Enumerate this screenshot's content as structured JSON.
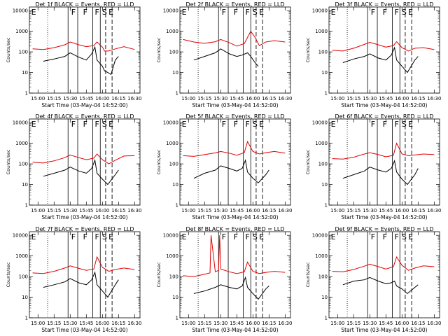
{
  "figure": {
    "xlabel": "Start Time (03-May-04 14:52:00)",
    "ylabel": "Counts/sec",
    "xticks": [
      "15:00",
      "15:15",
      "15:30",
      "15:45",
      "16:00",
      "16:15",
      "16:30"
    ],
    "yticks": [
      "1",
      "10",
      "100",
      "1000",
      "10000"
    ],
    "colors": {
      "events": "#000000",
      "lld": "#e00000"
    },
    "region_letters": [
      "E",
      "F",
      "F",
      "F",
      "S",
      "E"
    ]
  },
  "chart_data": [
    {
      "type": "line",
      "title": "Det 1f BLACK = Events, RED = LLD",
      "ylim": [
        1,
        15000
      ],
      "xlim": [
        "14:52",
        "16:35"
      ],
      "yscale": "log",
      "series": [
        {
          "x": [
            "15:05",
            "15:15",
            "15:25",
            "15:30",
            "15:38",
            "15:45",
            "15:50",
            "15:53",
            "15:55",
            "16:00",
            "16:02",
            "16:05",
            "16:08",
            "16:12",
            "16:15"
          ],
          "values": [
            35,
            45,
            60,
            90,
            55,
            40,
            80,
            170,
            40,
            20,
            12,
            10,
            8,
            40,
            60
          ]
        },
        {
          "x": [
            "14:55",
            "15:05",
            "15:15",
            "15:25",
            "15:30",
            "15:38",
            "15:45",
            "15:52",
            "15:55",
            "16:00",
            "16:02",
            "16:06",
            "16:10",
            "16:20",
            "16:30"
          ],
          "values": [
            140,
            130,
            160,
            220,
            300,
            220,
            180,
            200,
            300,
            170,
            110,
            110,
            130,
            180,
            130
          ]
        }
      ]
    },
    {
      "type": "line",
      "title": "Det 2f BLACK = Events, RED = LLD",
      "ylim": [
        1,
        15000
      ],
      "xlim": [
        "14:52",
        "16:35"
      ],
      "yscale": "log",
      "series": [
        {
          "x": [
            "15:05",
            "15:15",
            "15:25",
            "15:30",
            "15:38",
            "15:45",
            "15:50",
            "15:55",
            "15:58",
            "16:02",
            "16:05"
          ],
          "values": [
            40,
            60,
            90,
            140,
            80,
            60,
            70,
            90,
            60,
            30,
            20
          ]
        },
        {
          "x": [
            "14:55",
            "15:05",
            "15:15",
            "15:25",
            "15:30",
            "15:38",
            "15:45",
            "15:52",
            "15:58",
            "16:02",
            "16:06",
            "16:12",
            "16:20",
            "16:30"
          ],
          "values": [
            400,
            300,
            260,
            310,
            400,
            280,
            190,
            250,
            1000,
            500,
            200,
            300,
            350,
            300
          ]
        }
      ]
    },
    {
      "type": "line",
      "title": "Det 3f BLACK = Events, RED = LLD",
      "ylim": [
        1,
        15000
      ],
      "xlim": [
        "14:52",
        "16:35"
      ],
      "yscale": "log",
      "series": [
        {
          "x": [
            "15:05",
            "15:15",
            "15:25",
            "15:30",
            "15:38",
            "15:45",
            "15:50",
            "15:53",
            "15:55",
            "16:00",
            "16:05",
            "16:12",
            "16:15"
          ],
          "values": [
            30,
            45,
            60,
            80,
            50,
            40,
            70,
            160,
            40,
            20,
            10,
            40,
            60
          ]
        },
        {
          "x": [
            "14:55",
            "15:05",
            "15:15",
            "15:25",
            "15:30",
            "15:38",
            "15:45",
            "15:52",
            "15:55",
            "16:00",
            "16:06",
            "16:12",
            "16:20",
            "16:30"
          ],
          "values": [
            120,
            110,
            150,
            230,
            290,
            220,
            170,
            200,
            310,
            160,
            110,
            150,
            160,
            130
          ]
        }
      ]
    },
    {
      "type": "line",
      "title": "Det 4f BLACK = Events, RED = LLD",
      "ylim": [
        1,
        15000
      ],
      "xlim": [
        "14:52",
        "16:35"
      ],
      "yscale": "log",
      "series": [
        {
          "x": [
            "15:05",
            "15:15",
            "15:25",
            "15:30",
            "15:38",
            "15:45",
            "15:50",
            "15:53",
            "15:55",
            "16:00",
            "16:05",
            "16:12",
            "16:15"
          ],
          "values": [
            25,
            35,
            50,
            70,
            45,
            35,
            60,
            150,
            35,
            18,
            10,
            30,
            50
          ]
        },
        {
          "x": [
            "14:55",
            "15:05",
            "15:15",
            "15:25",
            "15:30",
            "15:38",
            "15:45",
            "15:52",
            "15:55",
            "16:00",
            "16:06",
            "16:12",
            "16:20",
            "16:30"
          ],
          "values": [
            120,
            110,
            140,
            200,
            270,
            200,
            160,
            190,
            300,
            160,
            100,
            150,
            240,
            250
          ]
        }
      ]
    },
    {
      "type": "line",
      "title": "Det 5f BLACK = Events, RED = LLD",
      "ylim": [
        1,
        15000
      ],
      "xlim": [
        "14:52",
        "16:35"
      ],
      "yscale": "log",
      "series": [
        {
          "x": [
            "15:05",
            "15:15",
            "15:25",
            "15:30",
            "15:38",
            "15:45",
            "15:50",
            "15:53",
            "15:55",
            "16:00",
            "16:05",
            "16:12",
            "16:15"
          ],
          "values": [
            20,
            35,
            50,
            80,
            60,
            45,
            60,
            150,
            40,
            20,
            12,
            30,
            50
          ]
        },
        {
          "x": [
            "14:55",
            "15:05",
            "15:15",
            "15:25",
            "15:30",
            "15:38",
            "15:45",
            "15:52",
            "15:55",
            "16:00",
            "16:06",
            "16:12",
            "16:20",
            "16:30"
          ],
          "values": [
            250,
            230,
            280,
            340,
            400,
            330,
            260,
            350,
            1200,
            400,
            300,
            350,
            400,
            330
          ]
        }
      ]
    },
    {
      "type": "line",
      "title": "Det 6f BLACK = Events, RED = LLD",
      "ylim": [
        1,
        15000
      ],
      "xlim": [
        "14:52",
        "16:35"
      ],
      "yscale": "log",
      "series": [
        {
          "x": [
            "15:05",
            "15:15",
            "15:25",
            "15:30",
            "15:38",
            "15:45",
            "15:50",
            "15:53",
            "15:55",
            "16:00",
            "16:05",
            "16:12",
            "16:15"
          ],
          "values": [
            20,
            30,
            45,
            70,
            50,
            40,
            60,
            140,
            40,
            18,
            10,
            30,
            60
          ]
        },
        {
          "x": [
            "14:55",
            "15:05",
            "15:15",
            "15:25",
            "15:30",
            "15:38",
            "15:45",
            "15:52",
            "15:55",
            "16:00",
            "16:06",
            "16:12",
            "16:20",
            "16:30"
          ],
          "values": [
            180,
            170,
            210,
            300,
            350,
            280,
            220,
            260,
            1000,
            300,
            250,
            270,
            300,
            280
          ]
        }
      ]
    },
    {
      "type": "line",
      "title": "Det 7f BLACK = Events, RED = LLD",
      "ylim": [
        1,
        15000
      ],
      "xlim": [
        "14:52",
        "16:35"
      ],
      "yscale": "log",
      "series": [
        {
          "x": [
            "15:05",
            "15:15",
            "15:25",
            "15:30",
            "15:38",
            "15:45",
            "15:50",
            "15:53",
            "15:55",
            "16:00",
            "16:05",
            "16:12",
            "16:15"
          ],
          "values": [
            30,
            40,
            55,
            80,
            50,
            40,
            70,
            160,
            40,
            20,
            10,
            40,
            70
          ]
        },
        {
          "x": [
            "14:55",
            "15:05",
            "15:15",
            "15:25",
            "15:30",
            "15:38",
            "15:45",
            "15:52",
            "15:55",
            "16:00",
            "16:06",
            "16:12",
            "16:20",
            "16:30"
          ],
          "values": [
            150,
            140,
            180,
            260,
            330,
            250,
            200,
            230,
            900,
            280,
            180,
            220,
            260,
            220
          ]
        }
      ]
    },
    {
      "type": "line",
      "title": "Det 8f BLACK = Events, RED = LLD",
      "ylim": [
        1,
        15000
      ],
      "xlim": [
        "14:52",
        "16:35"
      ],
      "yscale": "log",
      "series": [
        {
          "x": [
            "15:05",
            "15:15",
            "15:25",
            "15:30",
            "15:38",
            "15:45",
            "15:50",
            "15:53",
            "15:55",
            "16:00",
            "16:05",
            "16:12",
            "16:15"
          ],
          "values": [
            15,
            20,
            30,
            40,
            30,
            25,
            35,
            90,
            30,
            15,
            8,
            25,
            35
          ]
        },
        {
          "x": [
            "14:55",
            "15:05",
            "15:15",
            "15:20",
            "15:21",
            "15:25",
            "15:28",
            "15:29",
            "15:30",
            "15:38",
            "15:45",
            "15:52",
            "15:55",
            "16:00",
            "16:06",
            "16:12",
            "16:20",
            "16:30"
          ],
          "values": [
            110,
            100,
            130,
            150,
            10000,
            170,
            200,
            10000,
            230,
            170,
            140,
            170,
            500,
            180,
            140,
            160,
            180,
            160
          ]
        }
      ]
    },
    {
      "type": "line",
      "title": "Det 9f BLACK = Events, RED = LLD",
      "ylim": [
        1,
        15000
      ],
      "xlim": [
        "14:52",
        "16:35"
      ],
      "yscale": "log",
      "series": [
        {
          "x": [
            "15:05",
            "15:15",
            "15:25",
            "15:30",
            "15:38",
            "15:45",
            "15:50",
            "15:53",
            "15:55",
            "16:00",
            "16:05",
            "16:12",
            "16:15"
          ],
          "values": [
            40,
            60,
            70,
            90,
            60,
            45,
            50,
            60,
            35,
            25,
            15,
            30,
            40
          ]
        },
        {
          "x": [
            "14:55",
            "15:05",
            "15:15",
            "15:25",
            "15:30",
            "15:38",
            "15:45",
            "15:52",
            "15:55",
            "16:00",
            "16:06",
            "16:12",
            "16:20",
            "16:30"
          ],
          "values": [
            180,
            170,
            220,
            320,
            400,
            300,
            230,
            300,
            900,
            350,
            200,
            260,
            330,
            300
          ]
        }
      ]
    }
  ]
}
